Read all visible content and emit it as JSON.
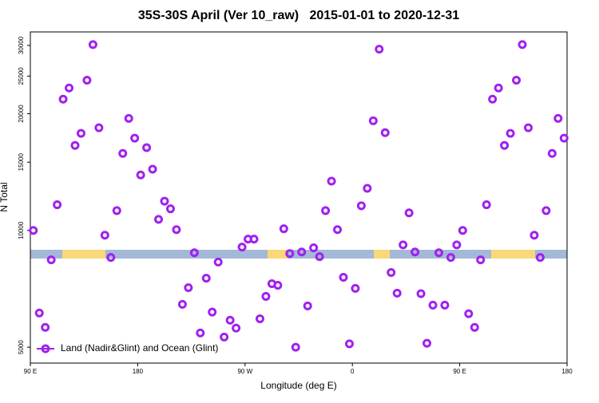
{
  "chart_data": {
    "type": "scatter",
    "title": "35S-30S April (Ver 10_raw)   2015-01-01 to 2020-12-31",
    "xlabel": "Longitude (deg E)",
    "ylabel": "N Total",
    "xlim": [
      90,
      540
    ],
    "ylim": [
      4550,
      32500
    ],
    "log_y": true,
    "xticks": [
      {
        "value": 90,
        "label": "90 E"
      },
      180,
      {
        "value": 270,
        "label": "90 W"
      },
      {
        "value": 360,
        "label": "0"
      },
      {
        "value": 450,
        "label": "90 E"
      },
      {
        "value": 540,
        "label": "180"
      }
    ],
    "yticks": [
      5000,
      10000,
      15000,
      20000,
      25000,
      30000
    ],
    "legend": "bottom-left",
    "series": [
      {
        "name": "Land (Nadir&Glint) and Ocean (Glint)",
        "color": "#a020f0",
        "x": [
          92.5,
          97.5,
          102.5,
          107.5,
          112.5,
          117.5,
          122.5,
          127.5,
          132.5,
          137.5,
          142.5,
          147.5,
          152.5,
          157.5,
          162.5,
          167.5,
          172.5,
          177.5,
          182.5,
          187.5,
          192.5,
          197.5,
          202.5,
          207.5,
          212.5,
          217.5,
          222.5,
          227.5,
          232.5,
          237.5,
          242.5,
          247.5,
          252.5,
          257.5,
          262.5,
          267.5,
          272.5,
          277.5,
          282.5,
          287.5,
          292.5,
          297.5,
          302.5,
          307.5,
          312.5,
          317.5,
          322.5,
          327.5,
          332.5,
          337.5,
          342.5,
          347.5,
          352.5,
          357.5,
          362.5,
          367.5,
          372.5,
          377.5,
          382.5,
          387.5,
          392.5,
          397.5,
          402.5,
          407.5,
          412.5,
          417.5,
          422.5,
          427.5,
          432.5,
          437.5,
          442.5,
          447.5,
          452.5,
          457.5,
          462.5,
          467.5,
          472.5,
          477.5,
          482.5,
          487.5,
          492.5,
          497.5,
          502.5,
          507.5,
          512.5,
          517.5,
          522.5,
          527.5,
          532.5,
          537.5
        ],
        "values": [
          10000,
          6125,
          5625,
          8400,
          11650,
          21800,
          23300,
          16570,
          17800,
          24400,
          30150,
          18400,
          9720,
          8520,
          11250,
          15800,
          19450,
          17300,
          13900,
          16350,
          14390,
          10680,
          11900,
          11370,
          10050,
          6450,
          7120,
          8760,
          5440,
          7530,
          6160,
          8290,
          5310,
          5870,
          5600,
          9060,
          9500,
          9500,
          5920,
          6760,
          7290,
          7220,
          10100,
          8720,
          5000,
          8800,
          6390,
          9020,
          8560,
          11250,
          13400,
          10050,
          7570,
          5100,
          7090,
          11580,
          12840,
          19180,
          29330,
          17870,
          7790,
          6890,
          9180,
          11100,
          8800,
          6870,
          5120,
          6420,
          8760,
          6420,
          8520,
          9180,
          10000,
          6100,
          5625,
          8400,
          11650,
          21800,
          23300,
          16570,
          17800,
          24400,
          30150,
          18400,
          9720,
          8520,
          11250,
          15800,
          19450,
          17300
        ]
      }
    ]
  }
}
